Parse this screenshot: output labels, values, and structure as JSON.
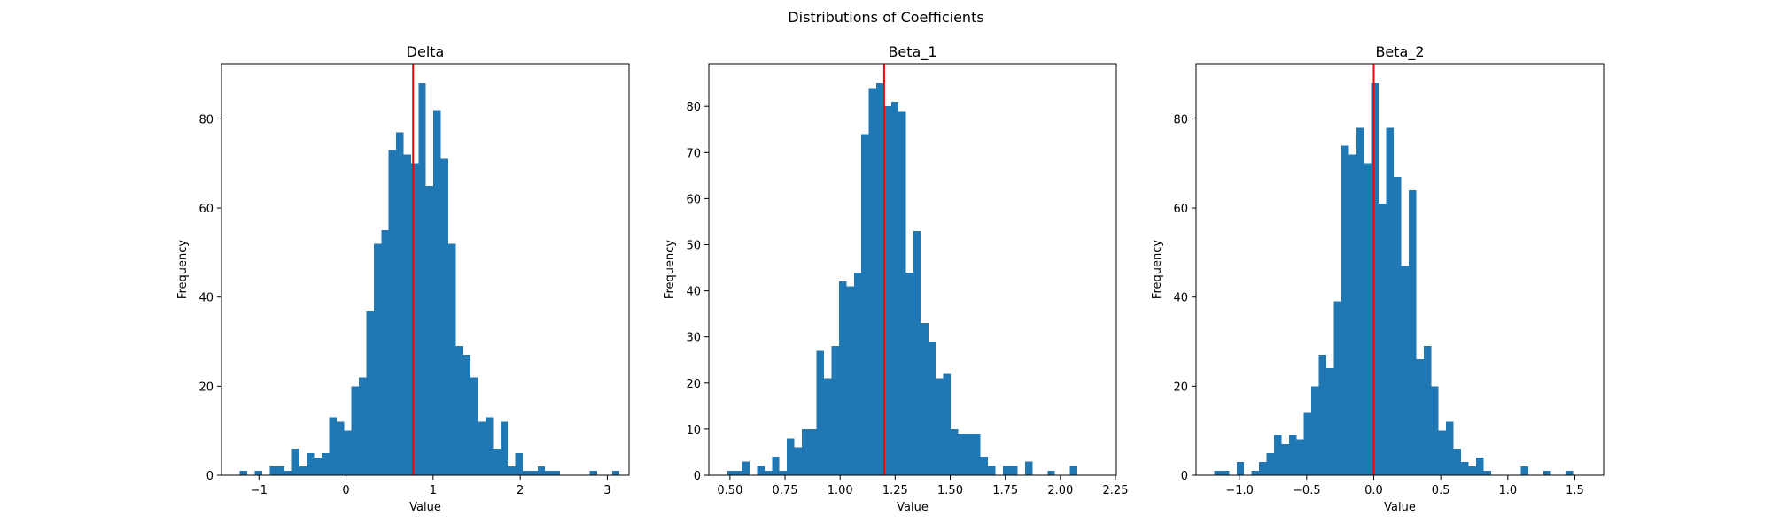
{
  "figure": {
    "suptitle": "Distributions of Coefficients",
    "bar_color": "#1f77b4",
    "reference_line_color": "#ff0000"
  },
  "chart_data": [
    {
      "type": "bar",
      "title": "Delta",
      "xlabel": "Value",
      "ylabel": "Frequency",
      "xlim": [
        -1.43,
        3.25
      ],
      "ylim": [
        0,
        92.4
      ],
      "xticks": [
        -1,
        0,
        1,
        2,
        3
      ],
      "xtick_labels": [
        "−1",
        "0",
        "1",
        "2",
        "3"
      ],
      "yticks": [
        0,
        20,
        40,
        60,
        80
      ],
      "bin_start": -1.22,
      "bin_width": 0.0855,
      "values": [
        1,
        0,
        1,
        0,
        2,
        2,
        1,
        6,
        2,
        5,
        4,
        5,
        13,
        12,
        10,
        20,
        22,
        37,
        52,
        55,
        73,
        77,
        72,
        70,
        88,
        65,
        82,
        71,
        52,
        29,
        27,
        22,
        12,
        13,
        6,
        12,
        2,
        5,
        1,
        1,
        2,
        1,
        1,
        0,
        0,
        0,
        0,
        1,
        0,
        0,
        1
      ],
      "reference_line": 0.77
    },
    {
      "type": "bar",
      "title": "Beta_1",
      "xlabel": "Value",
      "ylabel": "Frequency",
      "xlim": [
        0.404,
        2.254
      ],
      "ylim": [
        0,
        89.25
      ],
      "xticks": [
        0.5,
        0.75,
        1.0,
        1.25,
        1.5,
        1.75,
        2.0,
        2.25
      ],
      "xtick_labels": [
        "0.50",
        "0.75",
        "1.00",
        "1.25",
        "1.50",
        "1.75",
        "2.00",
        "2.25"
      ],
      "yticks": [
        0,
        10,
        20,
        30,
        40,
        50,
        60,
        70,
        80
      ],
      "bin_start": 0.488,
      "bin_width": 0.0338,
      "values": [
        1,
        1,
        3,
        0,
        2,
        1,
        4,
        1,
        8,
        6,
        10,
        10,
        27,
        21,
        28,
        42,
        41,
        44,
        74,
        84,
        85,
        80,
        81,
        79,
        44,
        53,
        33,
        29,
        21,
        22,
        10,
        9,
        9,
        9,
        4,
        2,
        0,
        2,
        2,
        0,
        3,
        0,
        0,
        1,
        0,
        0,
        2
      ],
      "reference_line": 1.2
    },
    {
      "type": "bar",
      "title": "Beta_2",
      "xlabel": "Value",
      "ylabel": "Frequency",
      "xlim": [
        -1.325,
        1.715
      ],
      "ylim": [
        0,
        92.4
      ],
      "xticks": [
        -1.0,
        -0.5,
        0.0,
        0.5,
        1.0,
        1.5
      ],
      "xtick_labels": [
        "−1.0",
        "−0.5",
        "0.0",
        "0.5",
        "1.0",
        "1.5"
      ],
      "yticks": [
        0,
        20,
        40,
        60,
        80
      ],
      "bin_start": -1.19,
      "bin_width": 0.0558,
      "values": [
        1,
        1,
        0,
        3,
        0,
        1,
        3,
        5,
        9,
        7,
        9,
        8,
        14,
        20,
        27,
        24,
        39,
        74,
        72,
        78,
        70,
        88,
        61,
        78,
        67,
        47,
        64,
        26,
        29,
        20,
        10,
        12,
        6,
        3,
        2,
        4,
        1,
        0,
        0,
        0,
        0,
        2,
        0,
        0,
        1,
        0,
        0,
        1
      ],
      "reference_line": 0.0
    }
  ]
}
